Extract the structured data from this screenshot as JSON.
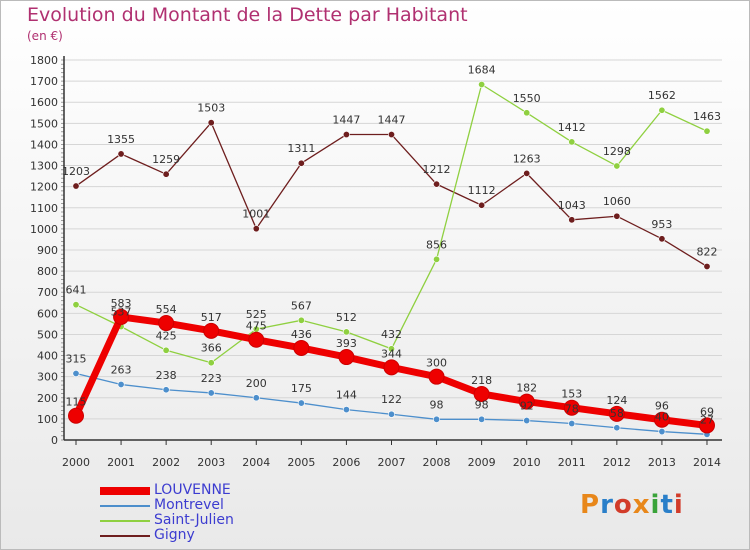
{
  "colors": {
    "title": "#b03070",
    "legend_text": "#3c3cd0",
    "grid": "#d6d6d6",
    "axis": "#333333",
    "label": "#333333"
  },
  "chart_data": {
    "type": "line",
    "title": "Evolution du Montant de la Dette par Habitant",
    "subtitle": "(en €)",
    "categories": [
      "2000",
      "2001",
      "2002",
      "2003",
      "2004",
      "2005",
      "2006",
      "2007",
      "2008",
      "2009",
      "2010",
      "2011",
      "2012",
      "2013",
      "2014"
    ],
    "ylim": [
      0,
      1800
    ],
    "yticks": [
      0,
      100,
      200,
      300,
      400,
      500,
      600,
      700,
      800,
      900,
      1000,
      1100,
      1200,
      1300,
      1400,
      1500,
      1600,
      1700,
      1800
    ],
    "grid": true,
    "legend_position": "bottom-left",
    "series": [
      {
        "name": "LOUVENNE",
        "color": "#ee0000",
        "values": [
          115,
          583,
          554,
          517,
          475,
          436,
          393,
          344,
          300,
          218,
          182,
          153,
          124,
          96,
          69
        ]
      },
      {
        "name": "Montrevel",
        "color": "#4d8fcc",
        "values": [
          315,
          263,
          238,
          223,
          200,
          175,
          144,
          122,
          98,
          98,
          92,
          78,
          58,
          40,
          27
        ]
      },
      {
        "name": "Saint-Julien",
        "color": "#8fd040",
        "values": [
          641,
          537,
          425,
          366,
          525,
          567,
          512,
          432,
          856,
          1684,
          1550,
          1412,
          1298,
          1562,
          1463
        ]
      },
      {
        "name": "Gigny",
        "color": "#6e1e1e",
        "values": [
          1203,
          1355,
          1259,
          1503,
          1001,
          1311,
          1447,
          1447,
          1212,
          1112,
          1263,
          1043,
          1060,
          953,
          822
        ]
      }
    ]
  },
  "logo": {
    "text": "Proxiti",
    "colors": [
      "#e8871a",
      "#2a7fc9",
      "#d23c2a",
      "#e8871a",
      "#3aa33a",
      "#2a7fc9",
      "#d23c2a"
    ]
  }
}
